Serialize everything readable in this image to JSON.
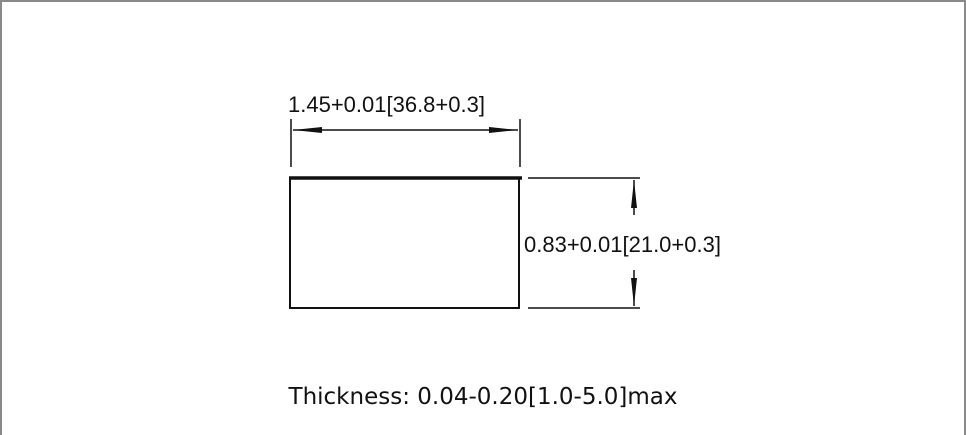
{
  "diagram": {
    "width_dimension_label": "1.45+0.01[36.8+0.3]",
    "height_dimension_label": "0.83+0.01[21.0+0.3]",
    "thickness_caption": "Thickness: 0.04-0.20[1.0-5.0]max"
  }
}
